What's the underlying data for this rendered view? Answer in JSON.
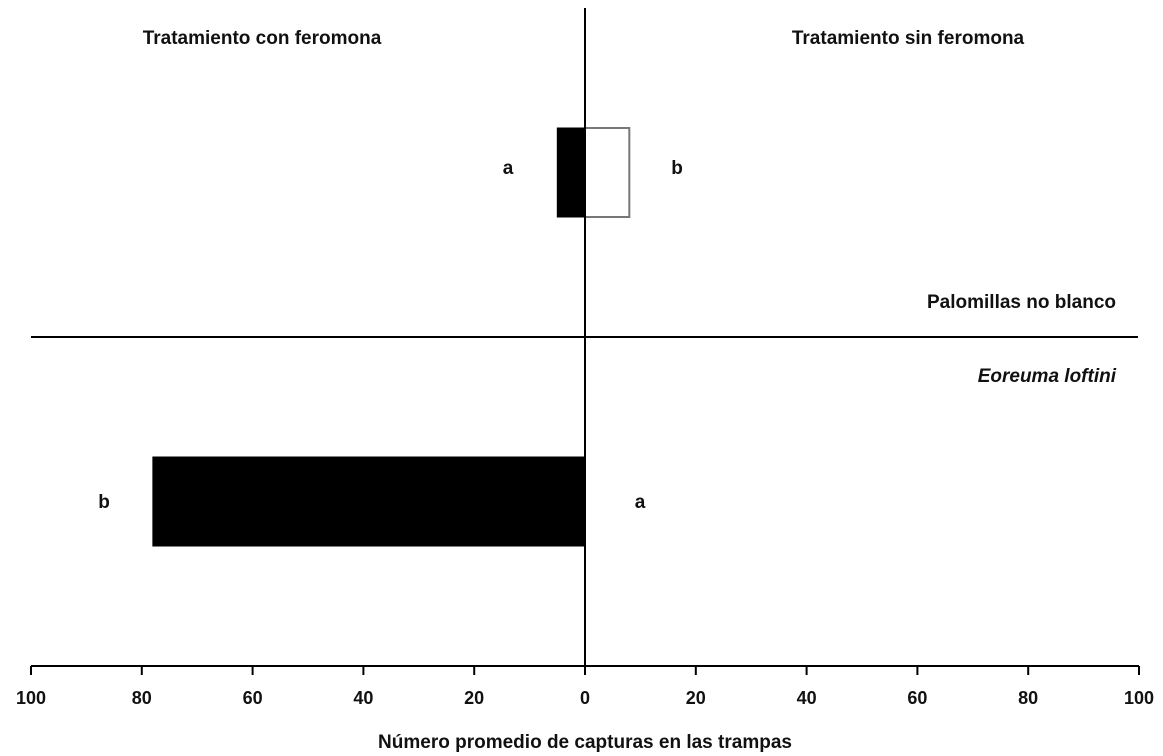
{
  "chart_data": {
    "type": "bar",
    "orientation": "horizontal",
    "layout": "back-to-back",
    "xlabel": "Número promedio de capturas en las trampas",
    "xlim": [
      -100,
      100
    ],
    "x_tick_values": [
      -100,
      -80,
      -60,
      -40,
      -20,
      0,
      20,
      40,
      60,
      80,
      100
    ],
    "x_tick_labels": [
      "100",
      "80",
      "60",
      "40",
      "20",
      "0",
      "20",
      "40",
      "60",
      "80",
      "100"
    ],
    "side_headers": {
      "left": "Tratamiento con feromona",
      "right": "Tratamiento sin feromona"
    },
    "categories": [
      "Palomillas no blanco",
      "Eoreuma loftini"
    ],
    "series": [
      {
        "name": "Tratamiento con feromona",
        "side": "left",
        "fill": "#000000",
        "values": [
          5,
          78
        ],
        "letters": [
          "a",
          "b"
        ]
      },
      {
        "name": "Tratamiento sin feromona",
        "side": "right",
        "fill": "#ffffff",
        "values": [
          8,
          0
        ],
        "letters": [
          "b",
          "a"
        ]
      }
    ],
    "colors": {
      "ink": "#000000",
      "open_bar": "#ffffff",
      "open_bar_stroke": "#777777"
    }
  }
}
